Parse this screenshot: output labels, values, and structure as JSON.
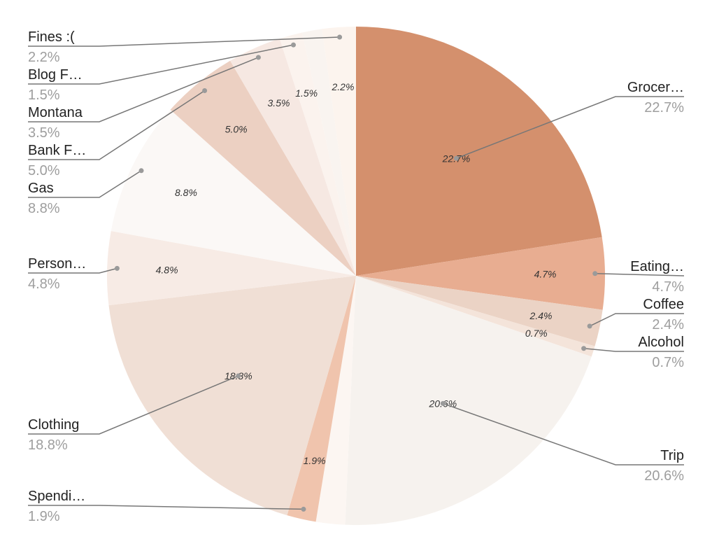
{
  "chart_data": {
    "type": "pie",
    "start_angle_deg": 0,
    "direction": "clockwise",
    "slices": [
      {
        "name": "Grocer…",
        "value": 22.7,
        "label": "22.7%",
        "color": "#d4906d"
      },
      {
        "name": "Eating…",
        "value": 4.7,
        "label": "4.7%",
        "color": "#e8ad91"
      },
      {
        "name": "Coffee",
        "value": 2.4,
        "label": "2.4%",
        "color": "#ebd3c5"
      },
      {
        "name": "Alcohol",
        "value": 0.7,
        "label": "0.7%",
        "color": "#f4e4da"
      },
      {
        "name": "Trip",
        "value": 20.6,
        "label": "20.6%",
        "color": "#f6f2ee"
      },
      {
        "name": "",
        "value": 1.9,
        "label": "",
        "color": "#fcf6f2"
      },
      {
        "name": "Spendi…",
        "value": 1.9,
        "label": "1.9%",
        "color": "#f0c4ad"
      },
      {
        "name": "Clothing",
        "value": 18.8,
        "label": "18.8%",
        "color": "#f0dfd5"
      },
      {
        "name": "Person…",
        "value": 4.8,
        "label": "4.8%",
        "color": "#f7ebe5"
      },
      {
        "name": "Gas",
        "value": 8.8,
        "label": "8.8%",
        "color": "#fbf8f6"
      },
      {
        "name": "Bank F…",
        "value": 5.0,
        "label": "5.0%",
        "color": "#ecd0c2"
      },
      {
        "name": "Montana",
        "value": 3.5,
        "label": "3.5%",
        "color": "#f6e8e2"
      },
      {
        "name": "Blog F…",
        "value": 1.5,
        "label": "1.5%",
        "color": "#fbf3ee"
      },
      {
        "name": "",
        "value": 1.3,
        "label": "",
        "color": "#f9f4f0"
      },
      {
        "name": "Fines :(",
        "value": 2.2,
        "label": "2.2%",
        "color": "#fcf4ee"
      }
    ]
  },
  "callouts": [
    {
      "slice": 0,
      "name": "Grocer…",
      "pct": "22.7%",
      "side": "right",
      "row": 0
    },
    {
      "slice": 1,
      "name": "Eating…",
      "pct": "4.7%",
      "side": "right",
      "row": 1
    },
    {
      "slice": 2,
      "name": "Coffee",
      "pct": "2.4%",
      "side": "right",
      "row": 2
    },
    {
      "slice": 3,
      "name": "Alcohol",
      "pct": "0.7%",
      "side": "right",
      "row": 3
    },
    {
      "slice": 4,
      "name": "Trip",
      "pct": "20.6%",
      "side": "right",
      "row": 4
    },
    {
      "slice": 14,
      "name": "Fines :(",
      "pct": "2.2%",
      "side": "left",
      "row": 0
    },
    {
      "slice": 12,
      "name": "Blog F…",
      "pct": "1.5%",
      "side": "left",
      "row": 1
    },
    {
      "slice": 11,
      "name": "Montana",
      "pct": "3.5%",
      "side": "left",
      "row": 2
    },
    {
      "slice": 10,
      "name": "Bank F…",
      "pct": "5.0%",
      "side": "left",
      "row": 3
    },
    {
      "slice": 9,
      "name": "Gas",
      "pct": "8.8%",
      "side": "left",
      "row": 4
    },
    {
      "slice": 8,
      "name": "Person…",
      "pct": "4.8%",
      "side": "left",
      "row": 5
    },
    {
      "slice": 7,
      "name": "Clothing",
      "pct": "18.8%",
      "side": "left",
      "row": 6
    },
    {
      "slice": 6,
      "name": "Spendi…",
      "pct": "1.9%",
      "side": "left",
      "row": 7
    }
  ]
}
